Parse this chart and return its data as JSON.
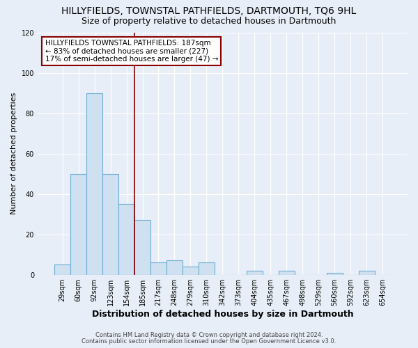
{
  "title": "HILLYFIELDS, TOWNSTAL PATHFIELDS, DARTMOUTH, TQ6 9HL",
  "subtitle": "Size of property relative to detached houses in Dartmouth",
  "xlabel": "Distribution of detached houses by size in Dartmouth",
  "ylabel": "Number of detached properties",
  "bar_labels": [
    "29sqm",
    "60sqm",
    "92sqm",
    "123sqm",
    "154sqm",
    "185sqm",
    "217sqm",
    "248sqm",
    "279sqm",
    "310sqm",
    "342sqm",
    "373sqm",
    "404sqm",
    "435sqm",
    "467sqm",
    "498sqm",
    "529sqm",
    "560sqm",
    "592sqm",
    "623sqm",
    "654sqm"
  ],
  "bar_values": [
    5,
    50,
    90,
    50,
    35,
    27,
    6,
    7,
    4,
    6,
    0,
    0,
    2,
    0,
    2,
    0,
    0,
    1,
    0,
    2,
    0
  ],
  "bar_color": "#cfe0f0",
  "bar_edge_color": "#6baed6",
  "ylim": [
    0,
    120
  ],
  "yticks": [
    0,
    20,
    40,
    60,
    80,
    100,
    120
  ],
  "marker_index": 5,
  "marker_color": "#8b0000",
  "annotation_title": "HILLYFIELDS TOWNSTAL PATHFIELDS: 187sqm",
  "annotation_line1": "← 83% of detached houses are smaller (227)",
  "annotation_line2": "17% of semi-detached houses are larger (47) →",
  "footer1": "Contains HM Land Registry data © Crown copyright and database right 2024.",
  "footer2": "Contains public sector information licensed under the Open Government Licence v3.0.",
  "bg_color": "#e8eef7",
  "plot_bg_color": "#e8eef7",
  "grid_color": "#ffffff",
  "title_fontsize": 10,
  "subtitle_fontsize": 9,
  "xlabel_fontsize": 9,
  "ylabel_fontsize": 8,
  "tick_fontsize": 7,
  "annotation_fontsize": 7.5,
  "footer_fontsize": 6
}
